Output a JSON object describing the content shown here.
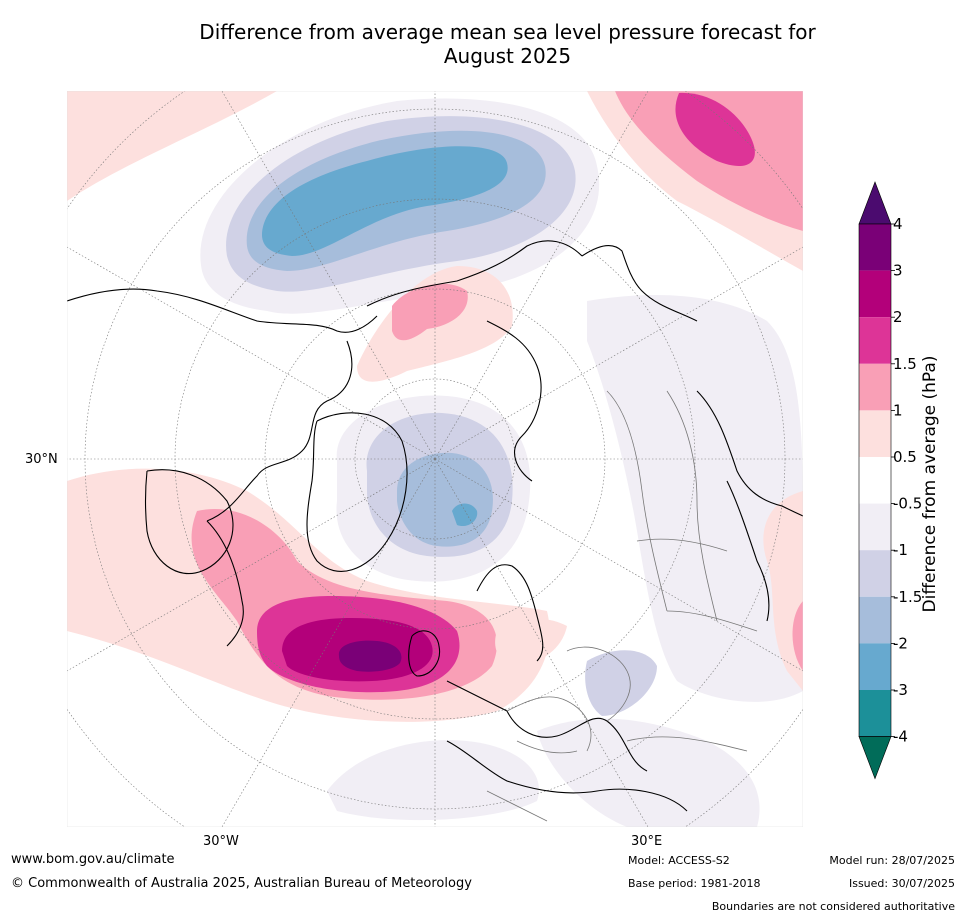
{
  "title": {
    "line1": "Difference from average mean sea level pressure forecast for",
    "line2": "August 2025"
  },
  "map": {
    "lat_label": "30°N",
    "lon_labels": [
      "30°W",
      "30°E"
    ]
  },
  "colorbar": {
    "label": "Difference from average (hPa)",
    "ticks": [
      "4",
      "3",
      "2",
      "1.5",
      "1",
      "0.5",
      "-0.5",
      "-1",
      "-1.5",
      "-2",
      "-3",
      "-4"
    ],
    "colors": {
      "above_max": "#4b0b6f",
      "c_3_4": "#7a0077",
      "c_2_3": "#b3007a",
      "c_1_5_2": "#dd3497",
      "c_1_1_5": "#f99fb6",
      "c_0_5_1": "#fde0de",
      "c_neg0_5_0_5": "#ffffff",
      "c_neg1_neg0_5": "#f1eef5",
      "c_neg1_5_neg1": "#d0d1e6",
      "c_neg2_neg1_5": "#a6bddb",
      "c_neg3_neg2": "#67a9cf",
      "c_neg4_neg3": "#1c9099",
      "below_min": "#016c59"
    }
  },
  "footer": {
    "website": "www.bom.gov.au/climate",
    "copyright": "© Commonwealth of Australia 2025, Australian Bureau of Meteorology",
    "model": "Model: ACCESS-S2",
    "base_period": "Base period: 1981-2018",
    "model_run": "Model run: 28/07/2025",
    "issued": "Issued: 30/07/2025",
    "disclaimer": "Boundaries are not considered authoritative"
  }
}
